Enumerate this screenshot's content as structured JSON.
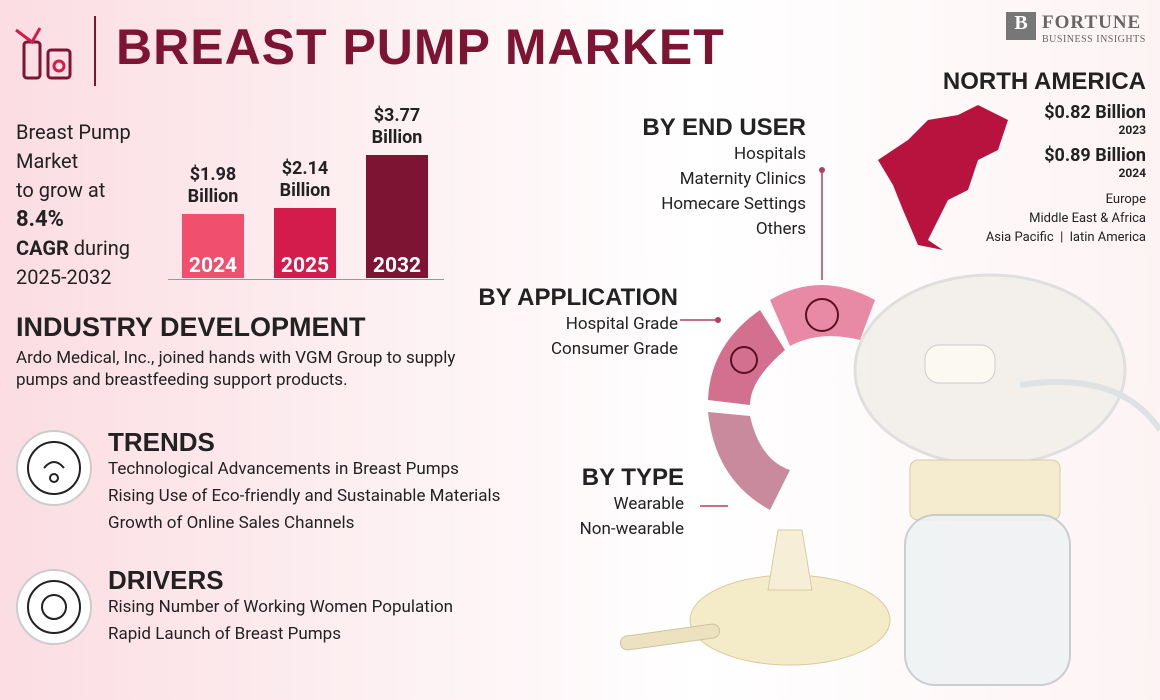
{
  "header": {
    "title": "BREAST PUMP MARKET",
    "logo_name": "FORTUNE",
    "logo_sub": "BUSINESS INSIGHTS"
  },
  "intro": {
    "line1": "Breast Pump",
    "line2": "Market",
    "line3": "to grow at",
    "rate": "8.4%",
    "cagr": "CAGR",
    "during": "during",
    "period": "2025-2032"
  },
  "chart_data": {
    "type": "bar",
    "categories": [
      "2024",
      "2025",
      "2032"
    ],
    "values": [
      1.98,
      2.14,
      3.77
    ],
    "value_labels": [
      "$1.98 Billion",
      "$2.14 Billion",
      "$3.77 Billion"
    ],
    "colors": [
      "#f0506e",
      "#d41c4c",
      "#7d1434"
    ]
  },
  "industry": {
    "title": "INDUSTRY DEVELOPMENT",
    "text": "Ardo Medical, Inc., joined hands with VGM Group to supply pumps and breastfeeding support products."
  },
  "trends": {
    "title": "TRENDS",
    "items": [
      "Technological Advancements in Breast Pumps",
      "Rising Use of Eco-friendly and Sustainable Materials",
      "Growth of Online Sales Channels"
    ]
  },
  "drivers": {
    "title": "DRIVERS",
    "items": [
      "Rising Number of Working Women Population",
      "Rapid Launch of Breast Pumps"
    ]
  },
  "segments": {
    "end_user": {
      "title": "BY END USER",
      "items": [
        "Hospitals",
        "Maternity Clinics",
        "Homecare Settings",
        "Others"
      ]
    },
    "application": {
      "title": "BY APPLICATION",
      "items": [
        "Hospital Grade",
        "Consumer Grade"
      ]
    },
    "type": {
      "title": "BY TYPE",
      "items": [
        "Wearable",
        "Non-wearable"
      ]
    }
  },
  "region": {
    "title": "NORTH AMERICA",
    "value1": "$0.82 Billion",
    "year1": "2023",
    "value2": "$0.89 Billion",
    "year2": "2024",
    "others": [
      "Europe",
      "Middle East & Africa",
      "Asia Pacific",
      "latin America"
    ]
  }
}
